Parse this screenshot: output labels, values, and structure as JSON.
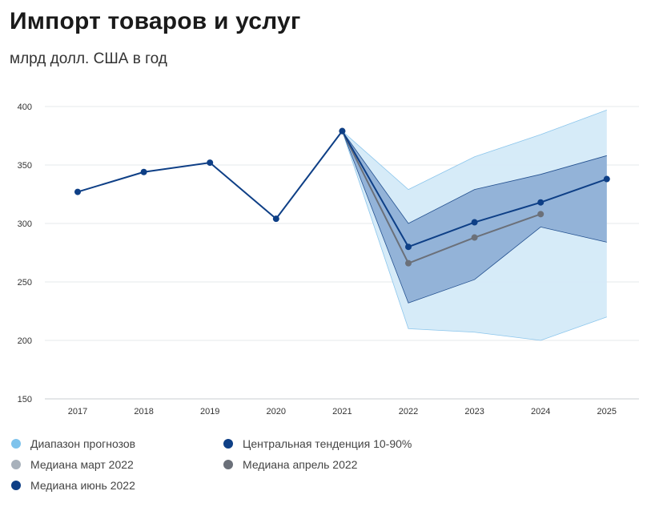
{
  "header": {
    "title": "Импорт товаров и услуг",
    "subtitle": "млрд долл. США в год"
  },
  "colors": {
    "range_band": "#d4eaf8",
    "central_band": "#8fb0d6",
    "median_june": "#0e3f86",
    "median_april": "#6b7079",
    "median_march": "#a8b1bb",
    "legend_range": "#7ec3ec",
    "legend_central": "#0e3f86"
  },
  "legend": [
    {
      "label": "Диапазон прогнозов",
      "color": "#7ec3ec"
    },
    {
      "label": "Центральная тенденция 10-90%",
      "color": "#0e3f86"
    },
    {
      "label": "Медиана март 2022",
      "color": "#a8b1bb"
    },
    {
      "label": "Медиана апрель 2022",
      "color": "#6b7079"
    },
    {
      "label": "Медиана июнь 2022",
      "color": "#0e3f86"
    }
  ],
  "chart_data": {
    "type": "line",
    "title": "Импорт товаров и услуг",
    "subtitle": "млрд долл. США в год",
    "categories": [
      "2017",
      "2018",
      "2019",
      "2020",
      "2021",
      "2022",
      "2023",
      "2024",
      "2025"
    ],
    "ylim": [
      150,
      400
    ],
    "yticks": [
      150,
      200,
      250,
      300,
      350,
      400
    ],
    "grid": true,
    "legend_position": "bottom",
    "bands": [
      {
        "name": "Диапазон прогнозов",
        "x": [
          "2021",
          "2022",
          "2023",
          "2024",
          "2025"
        ],
        "low": [
          379,
          210,
          207,
          200,
          220
        ],
        "high": [
          379,
          329,
          357,
          376,
          397
        ]
      },
      {
        "name": "Центральная тенденция 10-90%",
        "x": [
          "2021",
          "2022",
          "2023",
          "2024",
          "2025"
        ],
        "low": [
          379,
          232,
          252,
          297,
          284
        ],
        "high": [
          379,
          300,
          329,
          342,
          358
        ]
      }
    ],
    "series": [
      {
        "name": "Медиана июнь 2022",
        "x": [
          "2017",
          "2018",
          "2019",
          "2020",
          "2021",
          "2022",
          "2023",
          "2024",
          "2025"
        ],
        "values": [
          327,
          344,
          352,
          304,
          379,
          280,
          301,
          318,
          338
        ]
      },
      {
        "name": "Медиана апрель 2022",
        "x": [
          "2021",
          "2022",
          "2023",
          "2024"
        ],
        "values": [
          379,
          266,
          288,
          308
        ]
      }
    ]
  }
}
